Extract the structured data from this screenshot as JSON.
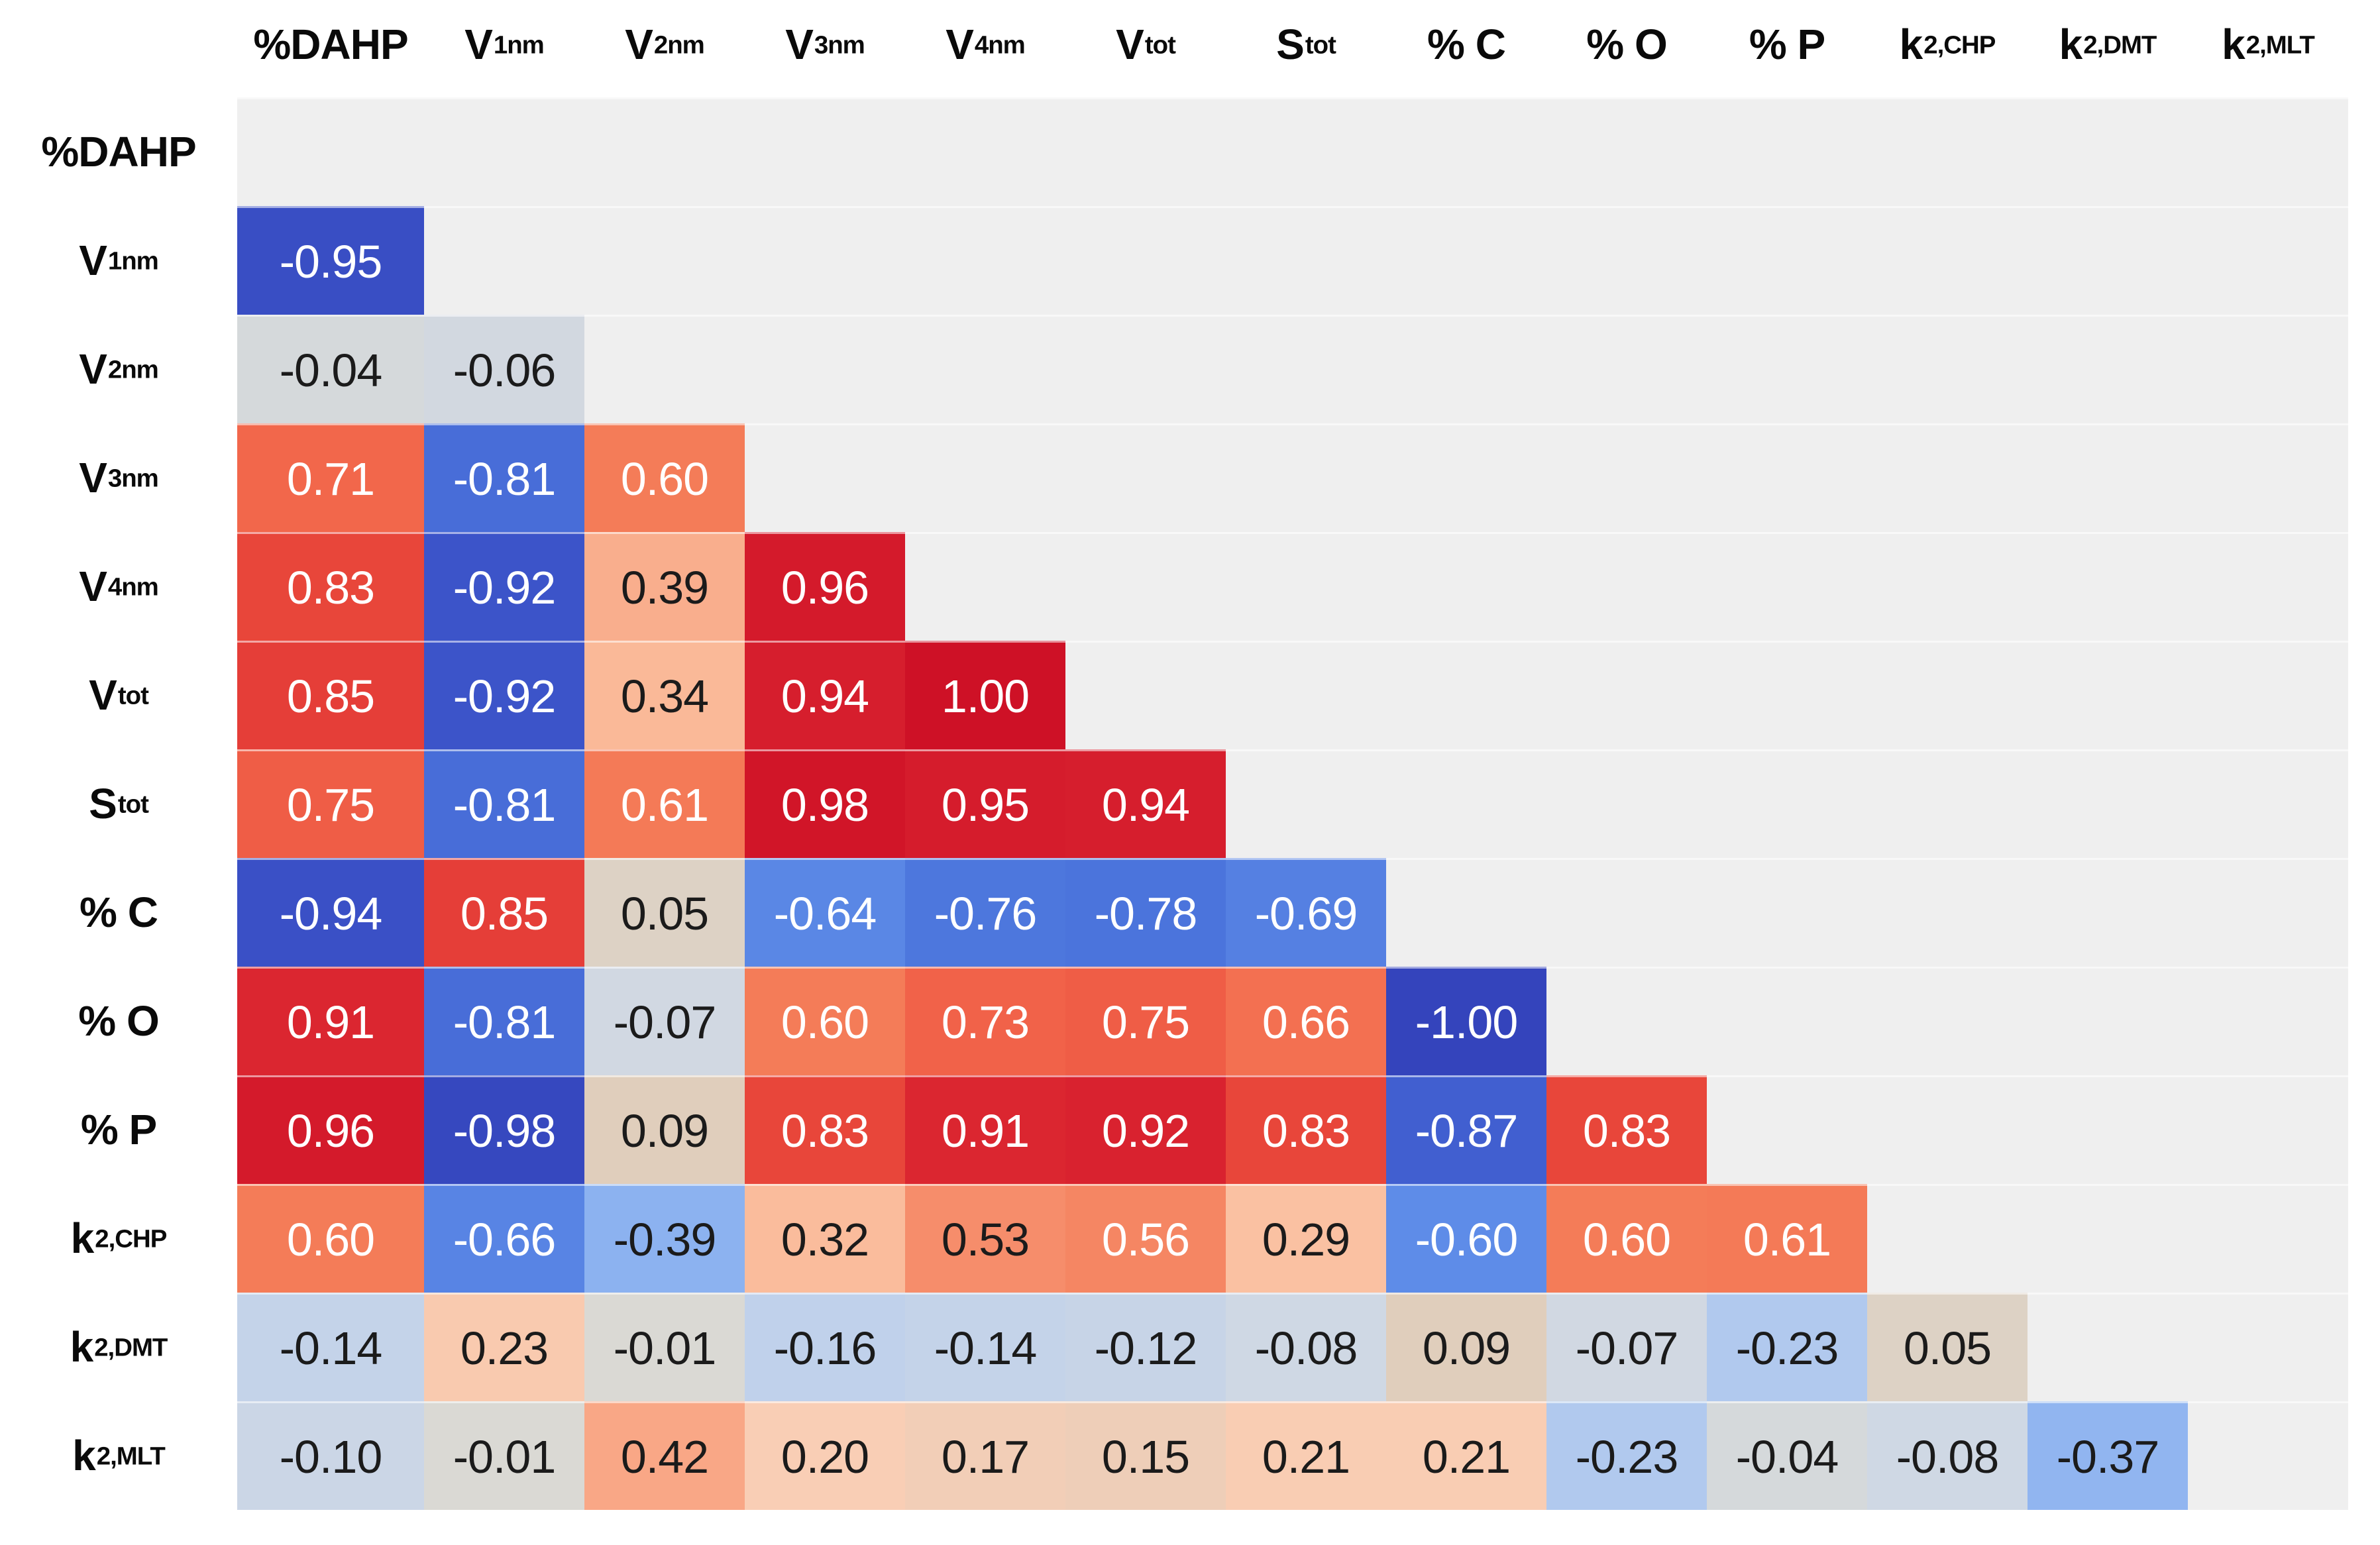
{
  "figure": {
    "kind": "lower-triangular correlation matrix heatmap",
    "background_color": "#ffffff",
    "empty_cell_color": "#EFEFEF",
    "dark_text_color": "#1b1b1b",
    "light_text_color": "#ffffff"
  },
  "chart_data": {
    "type": "heatmap",
    "value_format": "0.00",
    "legend": "none",
    "variables": [
      {
        "base": "%DAHP",
        "sub": ""
      },
      {
        "base": "V",
        "sub": "1nm"
      },
      {
        "base": "V",
        "sub": "2nm"
      },
      {
        "base": "V",
        "sub": "3nm"
      },
      {
        "base": "V",
        "sub": "4nm"
      },
      {
        "base": "V",
        "sub": "tot"
      },
      {
        "base": "S",
        "sub": "tot"
      },
      {
        "base": "% C",
        "sub": ""
      },
      {
        "base": "% O",
        "sub": ""
      },
      {
        "base": "% P",
        "sub": ""
      },
      {
        "base": "k",
        "sub": "2,CHP"
      },
      {
        "base": "k",
        "sub": "2,DMT"
      },
      {
        "base": "k",
        "sub": "2,MLT"
      }
    ],
    "matrix_lower": [
      [],
      [
        -0.95
      ],
      [
        -0.04,
        -0.06
      ],
      [
        0.71,
        -0.81,
        0.6
      ],
      [
        0.83,
        -0.92,
        0.39,
        0.96
      ],
      [
        0.85,
        -0.92,
        0.34,
        0.94,
        1.0
      ],
      [
        0.75,
        -0.81,
        0.61,
        0.98,
        0.95,
        0.94
      ],
      [
        -0.94,
        0.85,
        0.05,
        -0.64,
        -0.76,
        -0.78,
        -0.69
      ],
      [
        0.91,
        -0.81,
        -0.07,
        0.6,
        0.73,
        0.75,
        0.66,
        -1.0
      ],
      [
        0.96,
        -0.98,
        0.09,
        0.83,
        0.91,
        0.92,
        0.83,
        -0.87,
        0.83
      ],
      [
        0.6,
        -0.66,
        -0.39,
        0.32,
        0.53,
        0.56,
        0.29,
        -0.6,
        0.6,
        0.61
      ],
      [
        -0.14,
        0.23,
        -0.01,
        -0.16,
        -0.14,
        -0.12,
        -0.08,
        0.09,
        -0.07,
        -0.23,
        0.05
      ],
      [
        -0.1,
        -0.01,
        0.42,
        0.2,
        0.17,
        0.15,
        0.21,
        0.21,
        -0.23,
        -0.04,
        -0.08,
        -0.37
      ]
    ],
    "value_range": [
      -1,
      1
    ],
    "text_white_threshold": 0.55,
    "colormap": [
      [
        -1.0,
        "#3444BC"
      ],
      [
        -0.9,
        "#3E58CC"
      ],
      [
        -0.78,
        "#4B74DC"
      ],
      [
        -0.6,
        "#5E8CE8"
      ],
      [
        -0.4,
        "#8AB1F0"
      ],
      [
        -0.2,
        "#B8CDEE"
      ],
      [
        -0.08,
        "#CFD8E4"
      ],
      [
        0.0,
        "#DBD9D2"
      ],
      [
        0.08,
        "#DECEBD"
      ],
      [
        0.2,
        "#F9CEB5"
      ],
      [
        0.35,
        "#FAB896"
      ],
      [
        0.5,
        "#F79473"
      ],
      [
        0.6,
        "#F47C58"
      ],
      [
        0.72,
        "#F2654A"
      ],
      [
        0.83,
        "#E8463A"
      ],
      [
        0.92,
        "#D9222F"
      ],
      [
        1.0,
        "#CE1126"
      ]
    ]
  }
}
